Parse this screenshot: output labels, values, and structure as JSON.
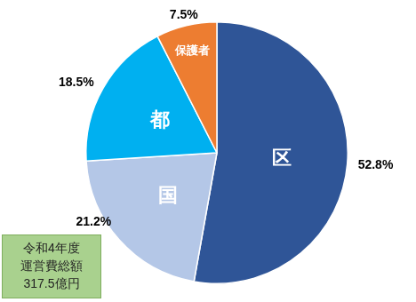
{
  "chart_data": {
    "type": "pie",
    "categories": [
      "区",
      "国",
      "都",
      "保護者"
    ],
    "values": [
      52.8,
      21.2,
      18.5,
      7.5
    ],
    "value_labels": [
      "52.8%",
      "21.2%",
      "18.5%",
      "7.5%"
    ],
    "colors": [
      "#2f5597",
      "#b4c7e7",
      "#00b0f0",
      "#ed7d31"
    ],
    "data_labels": true,
    "annotation": "令和4年度\n運営費総額\n317.5億円"
  }
}
